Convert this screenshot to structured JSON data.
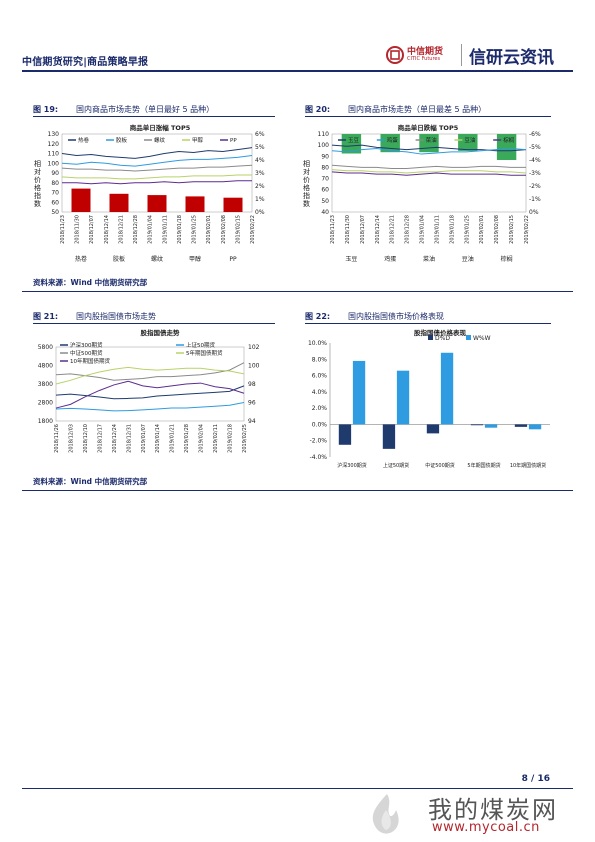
{
  "header": {
    "title": "中信期货研究|商品策略早报",
    "logo_cn": "中信期货",
    "logo_en": "CITIC Futures",
    "logo_name": "信研云资讯"
  },
  "figures": {
    "fig19": {
      "label": "图 19:",
      "caption": "国内商品市场走势（单日最好 5 品种）",
      "chart_title": "商品单日涨幅 TOP5",
      "y_side_label": "相对价格指数",
      "legend": [
        "热卷",
        "胶板",
        "螺纹",
        "甲醇",
        "PP"
      ]
    },
    "fig20": {
      "label": "图 20:",
      "caption": "国内商品市场走势（单日最差 5 品种）",
      "chart_title": "商品单日跌幅 TOP5",
      "y_side_label": "相对价格指数",
      "legend": [
        "玉豆",
        "鸡蛋",
        "菜油",
        "豆油",
        "棕榈"
      ]
    },
    "fig21": {
      "label": "图 21:",
      "caption": "国内股指国债市场走势",
      "chart_title": "股指国债走势",
      "legend": [
        "沪深300期货",
        "上证50期货",
        "中证500期货",
        "5年期国债期货",
        "10年期国债期货"
      ]
    },
    "fig22": {
      "label": "图 22:",
      "caption": "国内股指国债市场价格表现",
      "chart_title": "股指国债价格表现",
      "legend": [
        "D%D",
        "W%W"
      ]
    }
  },
  "sources": {
    "top": "资料来源：Wind  中信期货研究部",
    "bottom": "资料来源：Wind  中信期货研究部"
  },
  "footer": {
    "page": "8 / 16",
    "watermark_cn": "我的煤炭网",
    "watermark_url": "www.mycoal.cn"
  },
  "colors": {
    "navy": "#1b2a6b",
    "bar_red": "#c00000",
    "bar_green": "#3aaa5a",
    "bar_dark": "#1f3b6e",
    "bar_light": "#2f9be0"
  },
  "chart_data": [
    {
      "id": "fig19",
      "type": "line",
      "title": "商品单日涨幅 TOP5",
      "dates": [
        "2018/11/23",
        "2018/11/30",
        "2018/12/07",
        "2018/12/14",
        "2018/12/21",
        "2018/12/28",
        "2019/01/04",
        "2019/01/11",
        "2019/01/18",
        "2019/01/25",
        "2019/02/01",
        "2019/02/08",
        "2019/02/15",
        "2019/02/22"
      ],
      "ylim_left": [
        50,
        130
      ],
      "yticks_left": [
        50,
        60,
        70,
        80,
        90,
        100,
        110,
        120,
        130
      ],
      "ylim_right": [
        0,
        6
      ],
      "yticks_right": [
        "0%",
        "1%",
        "2%",
        "3%",
        "4%",
        "5%",
        "6%"
      ],
      "series": [
        {
          "name": "热卷",
          "values": [
            110,
            108,
            109,
            107,
            106,
            105,
            107,
            110,
            112,
            111,
            113,
            112,
            114,
            116
          ]
        },
        {
          "name": "胶板",
          "values": [
            100,
            99,
            101,
            100,
            98,
            97,
            99,
            101,
            103,
            104,
            104,
            105,
            106,
            108
          ]
        },
        {
          "name": "螺纹",
          "values": [
            95,
            94,
            94,
            93,
            93,
            92,
            93,
            94,
            95,
            95,
            96,
            96,
            97,
            98
          ]
        },
        {
          "name": "甲醇",
          "values": [
            86,
            85,
            85,
            85,
            84,
            84,
            85,
            86,
            86,
            87,
            87,
            87,
            88,
            88
          ]
        },
        {
          "name": "PP",
          "values": [
            80,
            80,
            79,
            80,
            79,
            80,
            80,
            81,
            80,
            81,
            81,
            81,
            82,
            82
          ]
        }
      ],
      "bars": {
        "categories": [
          "热卷",
          "胶板",
          "螺纹",
          "甲醇",
          "PP"
        ],
        "values": [
          1.8,
          1.4,
          1.3,
          1.2,
          1.1
        ]
      }
    },
    {
      "id": "fig20",
      "type": "line",
      "title": "商品单日跌幅 TOP5",
      "dates": [
        "2018/11/23",
        "2018/11/30",
        "2018/12/07",
        "2018/12/14",
        "2018/12/21",
        "2018/12/28",
        "2019/01/04",
        "2019/01/11",
        "2019/01/18",
        "2019/01/25",
        "2019/02/01",
        "2019/02/08",
        "2019/02/15",
        "2019/02/22"
      ],
      "ylim_left": [
        40,
        110
      ],
      "yticks_left": [
        40,
        50,
        60,
        70,
        80,
        90,
        100,
        110
      ],
      "ylim_right": [
        -6,
        0
      ],
      "yticks_right": [
        "0%",
        "-1%",
        "-2%",
        "-3%",
        "-4%",
        "-5%",
        "-6%"
      ],
      "series": [
        {
          "name": "玉豆",
          "values": [
            100,
            99,
            100,
            98,
            97,
            96,
            97,
            98,
            97,
            96,
            96,
            95,
            95,
            96
          ]
        },
        {
          "name": "鸡蛋",
          "values": [
            95,
            94,
            96,
            97,
            95,
            94,
            92,
            93,
            94,
            94,
            95,
            96,
            97,
            96
          ]
        },
        {
          "name": "菜油",
          "values": [
            82,
            81,
            80,
            80,
            79,
            79,
            80,
            81,
            80,
            80,
            81,
            81,
            80,
            80
          ]
        },
        {
          "name": "豆油",
          "values": [
            78,
            77,
            77,
            76,
            76,
            75,
            76,
            76,
            77,
            77,
            77,
            76,
            76,
            75
          ]
        },
        {
          "name": "棕榈",
          "values": [
            76,
            75,
            75,
            74,
            74,
            73,
            74,
            75,
            74,
            74,
            74,
            74,
            73,
            73
          ]
        }
      ],
      "bars": {
        "categories": [
          "玉豆",
          "鸡蛋",
          "菜油",
          "豆油",
          "棕榈"
        ],
        "values": [
          -1.5,
          -1.4,
          -1.4,
          -1.3,
          -2.0
        ]
      }
    },
    {
      "id": "fig21",
      "type": "line",
      "title": "股指国债走势",
      "dates": [
        "2018/11/26",
        "2018/12/03",
        "2018/12/10",
        "2018/12/17",
        "2018/12/24",
        "2018/12/31",
        "2019/01/07",
        "2019/01/14",
        "2019/01/21",
        "2019/01/28",
        "2019/02/04",
        "2019/02/11",
        "2019/02/18",
        "2019/02/25"
      ],
      "ylim_left": [
        1800,
        5800
      ],
      "yticks_left": [
        1800,
        2800,
        3800,
        4800,
        5800
      ],
      "ylim_right": [
        94,
        102
      ],
      "yticks_right": [
        94,
        96,
        98,
        100,
        102
      ],
      "series": [
        {
          "name": "沪深300期货",
          "axis": "left",
          "values": [
            3200,
            3250,
            3180,
            3100,
            3000,
            3020,
            3050,
            3150,
            3200,
            3250,
            3300,
            3350,
            3400,
            3700
          ]
        },
        {
          "name": "上证50期货",
          "axis": "left",
          "values": [
            2450,
            2480,
            2450,
            2400,
            2350,
            2360,
            2400,
            2450,
            2500,
            2500,
            2550,
            2600,
            2650,
            2800
          ]
        },
        {
          "name": "中证500期货",
          "axis": "left",
          "values": [
            4300,
            4350,
            4250,
            4150,
            4000,
            4050,
            4100,
            4200,
            4200,
            4250,
            4300,
            4400,
            4550,
            4950
          ]
        },
        {
          "name": "5年期国债期货",
          "axis": "right",
          "values": [
            98.0,
            98.4,
            98.9,
            99.3,
            99.6,
            99.8,
            99.6,
            99.5,
            99.6,
            99.7,
            99.7,
            99.5,
            99.4,
            99.1
          ]
        },
        {
          "name": "10年期国债期货",
          "axis": "right",
          "values": [
            95.4,
            95.8,
            96.6,
            97.3,
            97.9,
            98.3,
            97.8,
            97.6,
            97.8,
            98.0,
            98.1,
            97.7,
            97.5,
            97.0
          ]
        }
      ]
    },
    {
      "id": "fig22",
      "type": "bar",
      "title": "股指国债价格表现",
      "categories": [
        "沪深300期货",
        "上证50期货",
        "中证500期货",
        "5年期国债期货",
        "10年期国债期货"
      ],
      "ylim": [
        -4,
        10
      ],
      "yticks": [
        "-4.0%",
        "-2.0%",
        "0.0%",
        "2.0%",
        "4.0%",
        "6.0%",
        "8.0%",
        "10.0%"
      ],
      "series": [
        {
          "name": "D%D",
          "values": [
            -2.5,
            -3.0,
            -1.1,
            -0.1,
            -0.3
          ]
        },
        {
          "name": "W%W",
          "values": [
            7.8,
            6.6,
            8.8,
            -0.4,
            -0.6
          ]
        }
      ]
    }
  ]
}
